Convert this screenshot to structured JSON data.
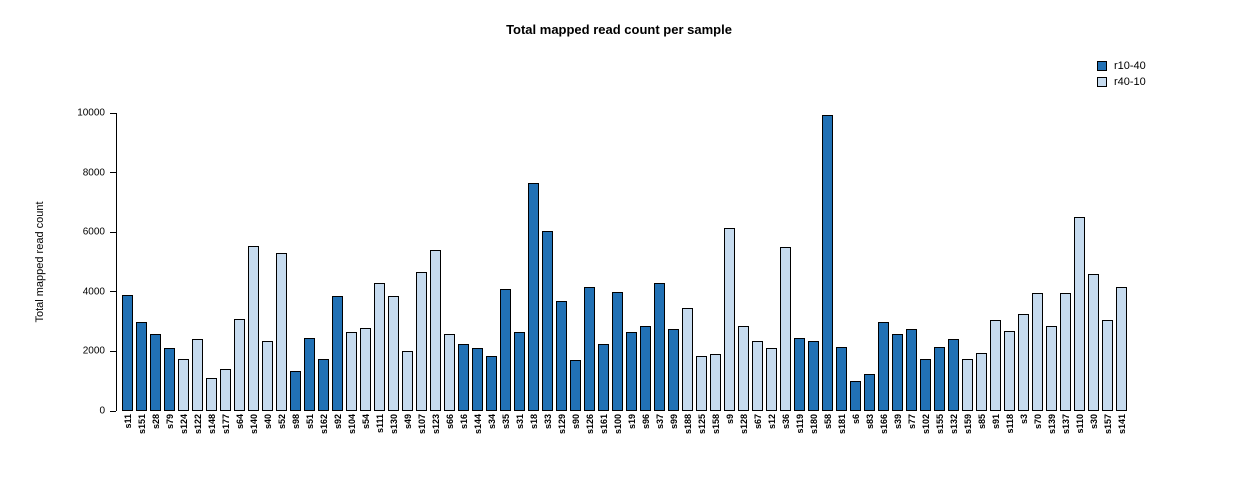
{
  "chart_data": {
    "type": "bar",
    "title": "Total mapped read count per sample",
    "ylabel": "Total mapped read count",
    "xlabel": "",
    "ylim": [
      0,
      10000
    ],
    "yticks": [
      0,
      2000,
      4000,
      6000,
      8000,
      10000
    ],
    "grid": false,
    "legend_position": "top-right",
    "legend": [
      {
        "label": "r10-40",
        "color": "#2171B5"
      },
      {
        "label": "r40-10",
        "color": "#C6DBEF"
      }
    ],
    "bars": [
      {
        "label": "s11",
        "value": 3900,
        "group": "r10-40"
      },
      {
        "label": "s151",
        "value": 3000,
        "group": "r10-40"
      },
      {
        "label": "s28",
        "value": 2600,
        "group": "r10-40"
      },
      {
        "label": "s79",
        "value": 2100,
        "group": "r10-40"
      },
      {
        "label": "s124",
        "value": 1750,
        "group": "r40-10"
      },
      {
        "label": "s122",
        "value": 2400,
        "group": "r40-10"
      },
      {
        "label": "s148",
        "value": 1100,
        "group": "r40-10"
      },
      {
        "label": "s177",
        "value": 1400,
        "group": "r40-10"
      },
      {
        "label": "s64",
        "value": 3100,
        "group": "r40-10"
      },
      {
        "label": "s140",
        "value": 5550,
        "group": "r40-10"
      },
      {
        "label": "s40",
        "value": 2350,
        "group": "r40-10"
      },
      {
        "label": "s52",
        "value": 5300,
        "group": "r40-10"
      },
      {
        "label": "s98",
        "value": 1350,
        "group": "r10-40"
      },
      {
        "label": "s51",
        "value": 2450,
        "group": "r10-40"
      },
      {
        "label": "s162",
        "value": 1750,
        "group": "r10-40"
      },
      {
        "label": "s92",
        "value": 3850,
        "group": "r10-40"
      },
      {
        "label": "s104",
        "value": 2650,
        "group": "r40-10"
      },
      {
        "label": "s54",
        "value": 2800,
        "group": "r40-10"
      },
      {
        "label": "s111",
        "value": 4300,
        "group": "r40-10"
      },
      {
        "label": "s130",
        "value": 3850,
        "group": "r40-10"
      },
      {
        "label": "s49",
        "value": 2000,
        "group": "r40-10"
      },
      {
        "label": "s107",
        "value": 4650,
        "group": "r40-10"
      },
      {
        "label": "s123",
        "value": 5400,
        "group": "r40-10"
      },
      {
        "label": "s66",
        "value": 2600,
        "group": "r40-10"
      },
      {
        "label": "s16",
        "value": 2250,
        "group": "r10-40"
      },
      {
        "label": "s144",
        "value": 2100,
        "group": "r10-40"
      },
      {
        "label": "s34",
        "value": 1850,
        "group": "r10-40"
      },
      {
        "label": "s35",
        "value": 4100,
        "group": "r10-40"
      },
      {
        "label": "s31",
        "value": 2650,
        "group": "r10-40"
      },
      {
        "label": "s18",
        "value": 7650,
        "group": "r10-40"
      },
      {
        "label": "s33",
        "value": 6050,
        "group": "r10-40"
      },
      {
        "label": "s129",
        "value": 3700,
        "group": "r10-40"
      },
      {
        "label": "s90",
        "value": 1700,
        "group": "r10-40"
      },
      {
        "label": "s126",
        "value": 4150,
        "group": "r10-40"
      },
      {
        "label": "s161",
        "value": 2250,
        "group": "r10-40"
      },
      {
        "label": "s100",
        "value": 4000,
        "group": "r10-40"
      },
      {
        "label": "s19",
        "value": 2650,
        "group": "r10-40"
      },
      {
        "label": "s96",
        "value": 2850,
        "group": "r10-40"
      },
      {
        "label": "s37",
        "value": 4300,
        "group": "r10-40"
      },
      {
        "label": "s99",
        "value": 2750,
        "group": "r10-40"
      },
      {
        "label": "s188",
        "value": 3450,
        "group": "r40-10"
      },
      {
        "label": "s125",
        "value": 1850,
        "group": "r40-10"
      },
      {
        "label": "s158",
        "value": 1900,
        "group": "r40-10"
      },
      {
        "label": "s9",
        "value": 6150,
        "group": "r40-10"
      },
      {
        "label": "s128",
        "value": 2850,
        "group": "r40-10"
      },
      {
        "label": "s67",
        "value": 2350,
        "group": "r40-10"
      },
      {
        "label": "s12",
        "value": 2100,
        "group": "r40-10"
      },
      {
        "label": "s36",
        "value": 5500,
        "group": "r40-10"
      },
      {
        "label": "s119",
        "value": 2450,
        "group": "r10-40"
      },
      {
        "label": "s180",
        "value": 2350,
        "group": "r10-40"
      },
      {
        "label": "s58",
        "value": 9950,
        "group": "r10-40"
      },
      {
        "label": "s181",
        "value": 2150,
        "group": "r10-40"
      },
      {
        "label": "s6",
        "value": 1000,
        "group": "r10-40"
      },
      {
        "label": "s83",
        "value": 1250,
        "group": "r10-40"
      },
      {
        "label": "s166",
        "value": 3000,
        "group": "r10-40"
      },
      {
        "label": "s39",
        "value": 2600,
        "group": "r10-40"
      },
      {
        "label": "s77",
        "value": 2750,
        "group": "r10-40"
      },
      {
        "label": "s102",
        "value": 1750,
        "group": "r10-40"
      },
      {
        "label": "s155",
        "value": 2150,
        "group": "r10-40"
      },
      {
        "label": "s132",
        "value": 2400,
        "group": "r10-40"
      },
      {
        "label": "s159",
        "value": 1750,
        "group": "r40-10"
      },
      {
        "label": "s85",
        "value": 1950,
        "group": "r40-10"
      },
      {
        "label": "s91",
        "value": 3050,
        "group": "r40-10"
      },
      {
        "label": "s118",
        "value": 2700,
        "group": "r40-10"
      },
      {
        "label": "s3",
        "value": 3250,
        "group": "r40-10"
      },
      {
        "label": "s70",
        "value": 3950,
        "group": "r40-10"
      },
      {
        "label": "s139",
        "value": 2850,
        "group": "r40-10"
      },
      {
        "label": "s137",
        "value": 3950,
        "group": "r40-10"
      },
      {
        "label": "s110",
        "value": 6500,
        "group": "r40-10"
      },
      {
        "label": "s30",
        "value": 4600,
        "group": "r40-10"
      },
      {
        "label": "s157",
        "value": 3050,
        "group": "r40-10"
      },
      {
        "label": "s141",
        "value": 4150,
        "group": "r40-10"
      }
    ]
  }
}
